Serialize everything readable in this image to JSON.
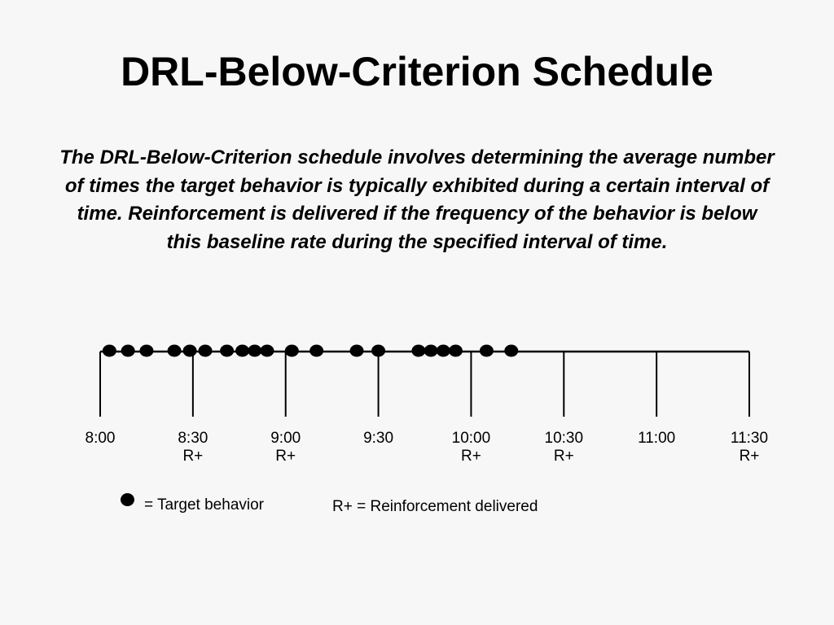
{
  "slide": {
    "title": "DRL-Below-Criterion Schedule",
    "description": "The DRL-Below-Criterion schedule involves determining the average number of times the target behavior is typically exhibited during a certain interval of time.  Reinforcement is delivered if the frequency of the behavior is below this baseline rate during the specified interval of time."
  },
  "timeline": {
    "start": "8:00",
    "end": "11:30",
    "ticks": [
      "8:00",
      "8:30",
      "9:00",
      "9:30",
      "10:00",
      "10:30",
      "11:00",
      "11:30"
    ],
    "reinforcement_label": "R+",
    "reinforced_intervals_ending": [
      "8:30",
      "9:00",
      "10:00",
      "10:30",
      "11:30"
    ],
    "behavior_times": [
      "8:03",
      "8:09",
      "8:15",
      "8:24",
      "8:29",
      "8:34",
      "8:41",
      "8:46",
      "8:50",
      "8:54",
      "9:02",
      "9:10",
      "9:23",
      "9:30",
      "9:43",
      "9:47",
      "9:51",
      "9:55",
      "10:05",
      "10:13"
    ]
  },
  "legend": {
    "behavior": "= Target behavior",
    "reinforcement": "R+ = Reinforcement delivered"
  },
  "colors": {
    "background": "#f7f7f7",
    "ink": "#000000"
  }
}
